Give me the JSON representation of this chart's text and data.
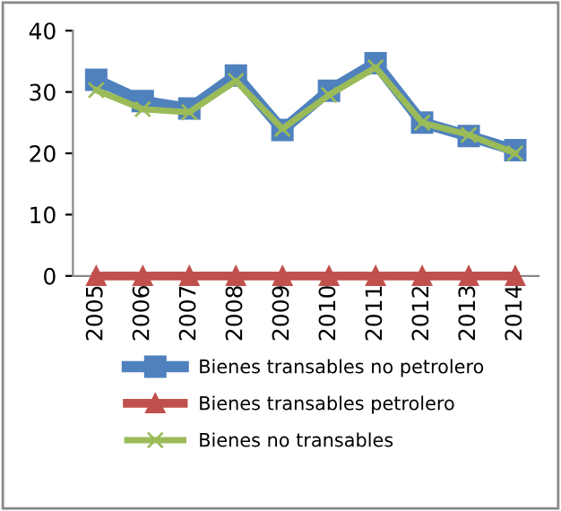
{
  "chart_data": {
    "type": "line",
    "categories": [
      "2005",
      "2006",
      "2007",
      "2008",
      "2009",
      "2010",
      "2011",
      "2012",
      "2013",
      "2014"
    ],
    "series": [
      {
        "name": "Bienes transables no petrolero",
        "color": "#4f81bd",
        "marker": "square",
        "values": [
          32,
          28.5,
          27.3,
          32.7,
          23.8,
          30.2,
          34.7,
          25,
          22.8,
          20.5
        ]
      },
      {
        "name": "Bienes transables petrolero",
        "color": "#c0504d",
        "marker": "triangle",
        "values": [
          0,
          0,
          0,
          0,
          0,
          0,
          0,
          0,
          0,
          0
        ]
      },
      {
        "name": "Bienes no transables",
        "color": "#9bbb59",
        "marker": "cross",
        "values": [
          30.3,
          27.2,
          26.7,
          31.8,
          24,
          29.5,
          34,
          25,
          23,
          20
        ]
      }
    ],
    "ylim": [
      0,
      40
    ],
    "yticks": [
      0,
      10,
      20,
      30,
      40
    ],
    "grid": false,
    "legend": "bottom"
  }
}
